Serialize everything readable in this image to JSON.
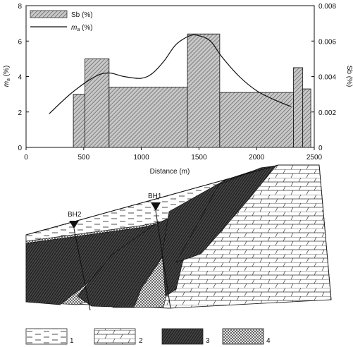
{
  "chart_data": {
    "type": "bar",
    "title": "",
    "xlabel": "Distance (m)",
    "ylabel_left": "m",
    "ylabel_left_subscript": "a",
    "ylabel_left_unit": " (%)",
    "ylabel_right": "Sb (%)",
    "xlim": [
      0,
      2500
    ],
    "ylim_left": [
      0,
      8
    ],
    "ylim_right": [
      0,
      0.008
    ],
    "x_ticks": [
      "0",
      "500",
      "1000",
      "1500",
      "2000",
      "2500"
    ],
    "y_left_ticks": [
      "0",
      "2",
      "4",
      "6",
      "8"
    ],
    "y_right_ticks": [
      "0",
      "0.002",
      "0.004",
      "0.006",
      "0.008"
    ],
    "legend": {
      "placement": "top-left",
      "items": [
        {
          "text": "Sb (%)",
          "kind": "hatched-bar"
        },
        {
          "text_main": "m",
          "text_sub": "a",
          "text_unit": " (%)",
          "kind": "line"
        }
      ]
    },
    "series": [
      {
        "name": "Sb (%)",
        "kind": "step-bars",
        "axis": "right",
        "bins": [
          {
            "x0": 410,
            "x1": 510,
            "value": 0.003
          },
          {
            "x0": 510,
            "x1": 720,
            "value": 0.005
          },
          {
            "x0": 720,
            "x1": 1400,
            "value": 0.0034
          },
          {
            "x0": 1400,
            "x1": 1680,
            "value": 0.0064
          },
          {
            "x0": 1680,
            "x1": 2320,
            "value": 0.0031
          },
          {
            "x0": 2320,
            "x1": 2400,
            "value": 0.0045
          },
          {
            "x0": 2400,
            "x1": 2470,
            "value": 0.0033
          }
        ]
      },
      {
        "name": "m_a (%)",
        "kind": "line",
        "axis": "left",
        "x": [
          200,
          400,
          600,
          720,
          850,
          1000,
          1100,
          1200,
          1300,
          1420,
          1500,
          1600,
          1700,
          1850,
          2000,
          2150,
          2300
        ],
        "y": [
          1.9,
          3.1,
          4.0,
          4.2,
          4.0,
          3.9,
          4.2,
          4.9,
          5.8,
          6.3,
          6.3,
          6.0,
          5.1,
          4.0,
          3.2,
          2.7,
          2.3
        ]
      }
    ],
    "grid": false
  },
  "section": {
    "boreholes": [
      {
        "label": "BH2"
      },
      {
        "label": "BH1"
      }
    ],
    "lithology_key": [
      {
        "number": "1",
        "pattern": "dashed-lines"
      },
      {
        "number": "2",
        "pattern": "brick-slant"
      },
      {
        "number": "3",
        "pattern": "dense-diagonal-hatch"
      },
      {
        "number": "4",
        "pattern": "crosshatch"
      }
    ]
  }
}
